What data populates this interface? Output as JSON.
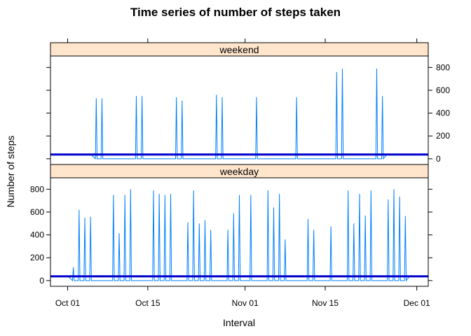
{
  "chart_data": {
    "type": "line",
    "title": "Time series of number of steps taken",
    "xlabel": "Interval",
    "ylabel": "Number of steps",
    "x_axis": {
      "type": "date",
      "range": [
        "2012-09-28",
        "2012-12-03"
      ],
      "ticks": [
        {
          "date": "2012-10-01",
          "label": "Oct 01"
        },
        {
          "date": "2012-10-15",
          "label": "Oct 15"
        },
        {
          "date": "2012-11-01",
          "label": "Nov 01"
        },
        {
          "date": "2012-11-15",
          "label": "Nov 15"
        },
        {
          "date": "2012-12-01",
          "label": "Dec 01"
        }
      ]
    },
    "y_axis": {
      "range": [
        -50,
        900
      ],
      "ticks": [
        0,
        200,
        400,
        600,
        800
      ]
    },
    "colors": {
      "series_line": "#0080ff",
      "mean_line": "#0000cc",
      "strip_background": "#ffe5cc",
      "frame": "#000000"
    },
    "mean_line_value": 37,
    "panels": [
      {
        "label": "weekend",
        "position": "top",
        "tick_labels_side": "right",
        "points": [
          {
            "x": "2012-10-06",
            "y": 530
          },
          {
            "x": "2012-10-07",
            "y": 530
          },
          {
            "x": "2012-10-13",
            "y": 550
          },
          {
            "x": "2012-10-14",
            "y": 550
          },
          {
            "x": "2012-10-20",
            "y": 540
          },
          {
            "x": "2012-10-21",
            "y": 510
          },
          {
            "x": "2012-10-27",
            "y": 560
          },
          {
            "x": "2012-10-28",
            "y": 540
          },
          {
            "x": "2012-11-03",
            "y": 540
          },
          {
            "x": "2012-11-10",
            "y": 540
          },
          {
            "x": "2012-11-17",
            "y": 760
          },
          {
            "x": "2012-11-18",
            "y": 790
          },
          {
            "x": "2012-11-24",
            "y": 790
          },
          {
            "x": "2012-11-25",
            "y": 550
          }
        ]
      },
      {
        "label": "weekday",
        "position": "bottom",
        "tick_labels_side": "left",
        "points": [
          {
            "x": "2012-10-02",
            "y": 117
          },
          {
            "x": "2012-10-03",
            "y": 620
          },
          {
            "x": "2012-10-04",
            "y": 550
          },
          {
            "x": "2012-10-05",
            "y": 560
          },
          {
            "x": "2012-10-09",
            "y": 750
          },
          {
            "x": "2012-10-10",
            "y": 415
          },
          {
            "x": "2012-10-11",
            "y": 750
          },
          {
            "x": "2012-10-12",
            "y": 800
          },
          {
            "x": "2012-10-16",
            "y": 790
          },
          {
            "x": "2012-10-17",
            "y": 760
          },
          {
            "x": "2012-10-18",
            "y": 750
          },
          {
            "x": "2012-10-19",
            "y": 760
          },
          {
            "x": "2012-10-22",
            "y": 510
          },
          {
            "x": "2012-10-23",
            "y": 790
          },
          {
            "x": "2012-10-24",
            "y": 500
          },
          {
            "x": "2012-10-25",
            "y": 530
          },
          {
            "x": "2012-10-26",
            "y": 445
          },
          {
            "x": "2012-10-29",
            "y": 445
          },
          {
            "x": "2012-10-30",
            "y": 590
          },
          {
            "x": "2012-10-31",
            "y": 750
          },
          {
            "x": "2012-11-02",
            "y": 750
          },
          {
            "x": "2012-11-05",
            "y": 790
          },
          {
            "x": "2012-11-06",
            "y": 640
          },
          {
            "x": "2012-11-07",
            "y": 760
          },
          {
            "x": "2012-11-08",
            "y": 360
          },
          {
            "x": "2012-11-12",
            "y": 540
          },
          {
            "x": "2012-11-13",
            "y": 445
          },
          {
            "x": "2012-11-16",
            "y": 475
          },
          {
            "x": "2012-11-19",
            "y": 790
          },
          {
            "x": "2012-11-20",
            "y": 500
          },
          {
            "x": "2012-11-21",
            "y": 760
          },
          {
            "x": "2012-11-22",
            "y": 570
          },
          {
            "x": "2012-11-23",
            "y": 790
          },
          {
            "x": "2012-11-26",
            "y": 710
          },
          {
            "x": "2012-11-27",
            "y": 800
          },
          {
            "x": "2012-11-28",
            "y": 735
          },
          {
            "x": "2012-11-29",
            "y": 565
          }
        ]
      }
    ]
  }
}
